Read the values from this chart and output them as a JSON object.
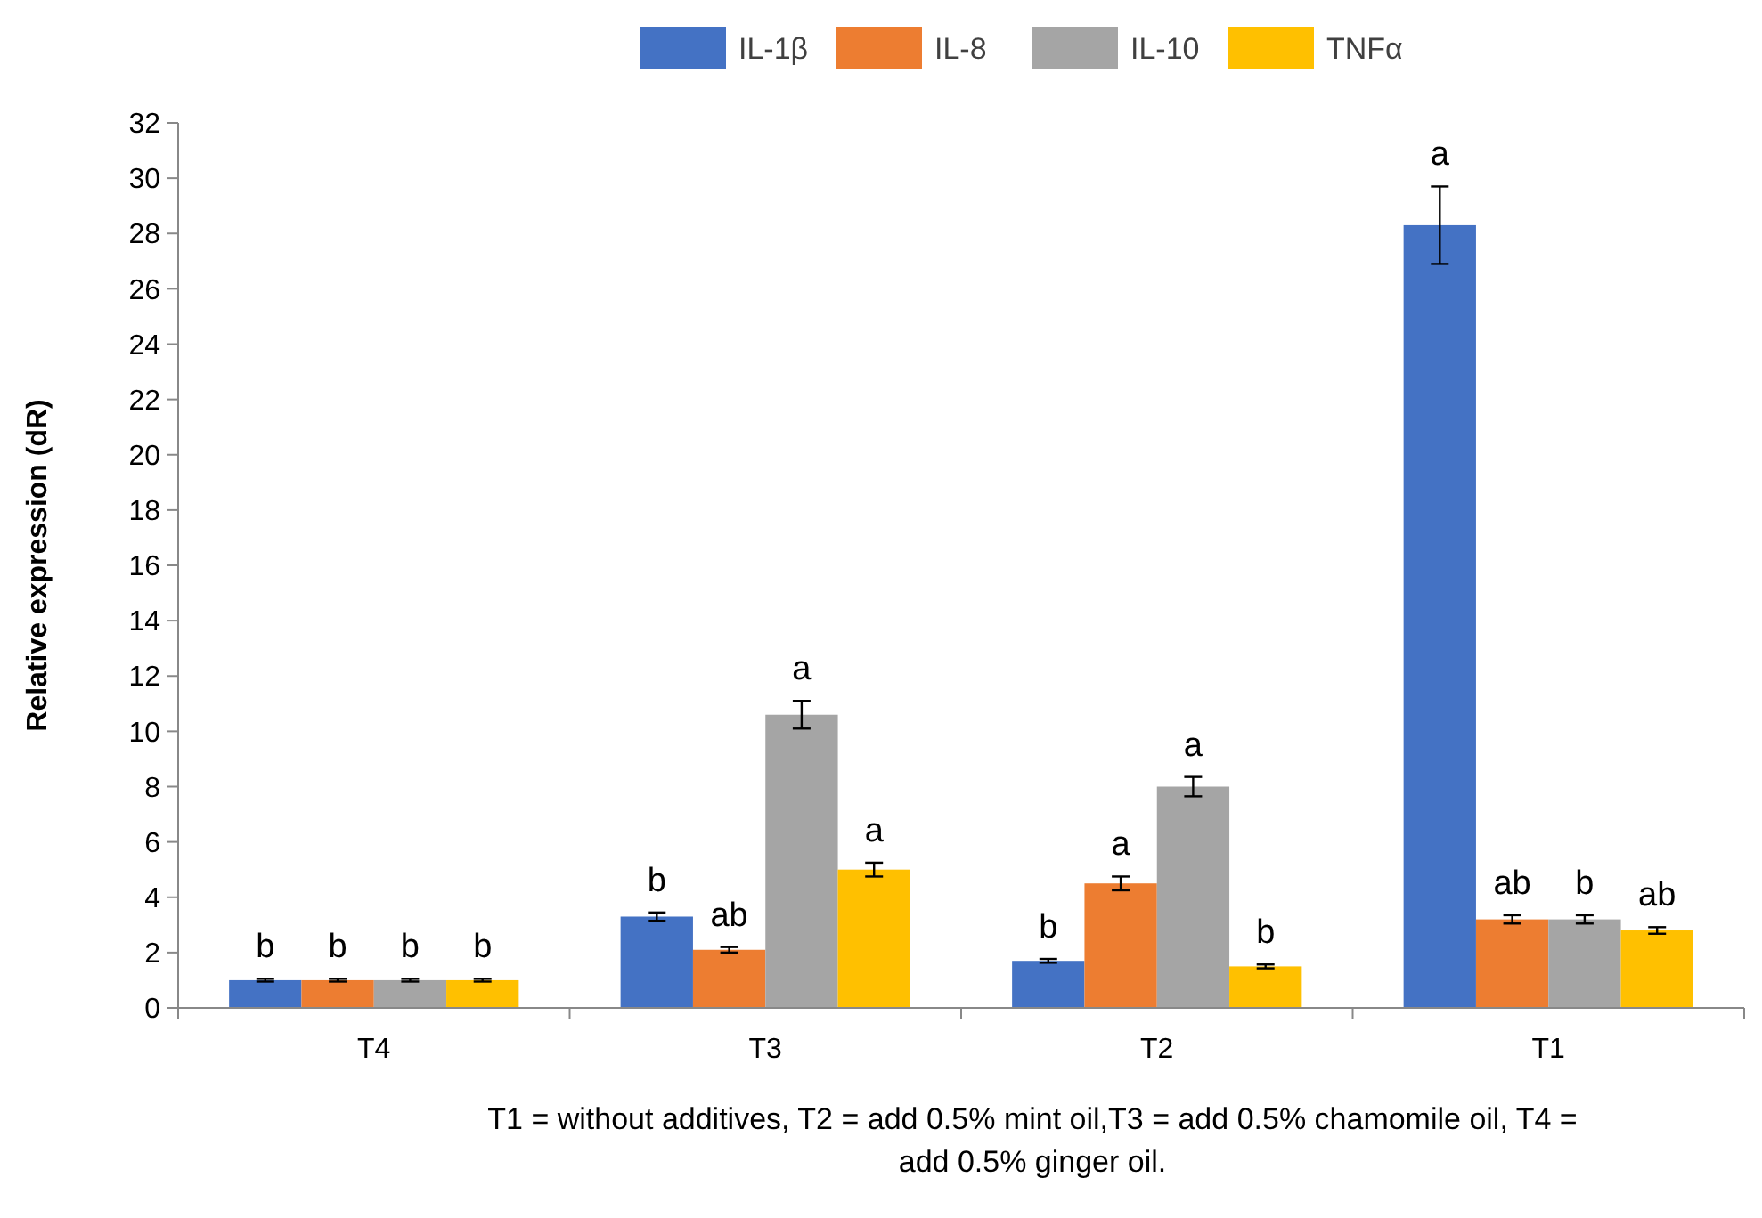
{
  "chart_data": {
    "type": "bar",
    "ylabel": "Relative expression (dR)",
    "categories": [
      "T4",
      "T3",
      "T2",
      "T1"
    ],
    "series": [
      {
        "name": "IL-1β",
        "color": "#4472c4",
        "values": [
          1.0,
          3.3,
          1.7,
          28.3
        ],
        "errors": [
          0.05,
          0.15,
          0.07,
          1.4
        ],
        "value_labels": [
          "b",
          "b",
          "b",
          "a"
        ]
      },
      {
        "name": "IL-8",
        "color": "#ed7d31",
        "values": [
          1.0,
          2.1,
          4.5,
          3.2
        ],
        "errors": [
          0.05,
          0.1,
          0.25,
          0.15
        ],
        "value_labels": [
          "b",
          "ab",
          "a",
          "ab"
        ]
      },
      {
        "name": "IL-10",
        "color": "#a5a5a5",
        "values": [
          1.0,
          10.6,
          8.0,
          3.2
        ],
        "errors": [
          0.05,
          0.5,
          0.35,
          0.15
        ],
        "value_labels": [
          "b",
          "a",
          "a",
          "b"
        ]
      },
      {
        "name": "TNFα",
        "color": "#ffc000",
        "values": [
          1.0,
          5.0,
          1.5,
          2.8
        ],
        "errors": [
          0.05,
          0.25,
          0.07,
          0.12
        ],
        "value_labels": [
          "b",
          "a",
          "b",
          "ab"
        ]
      }
    ],
    "ylim": [
      0,
      32
    ],
    "yticks": [
      0,
      2,
      4,
      6,
      8,
      10,
      12,
      14,
      16,
      18,
      20,
      22,
      24,
      26,
      28,
      30,
      32
    ],
    "legend": "top",
    "annotations": [
      "T1 = without additives, T2 = add 0.5% mint oil,T3 = add 0.5% chamomile oil, T4 =",
      "add 0.5% ginger oil."
    ]
  }
}
